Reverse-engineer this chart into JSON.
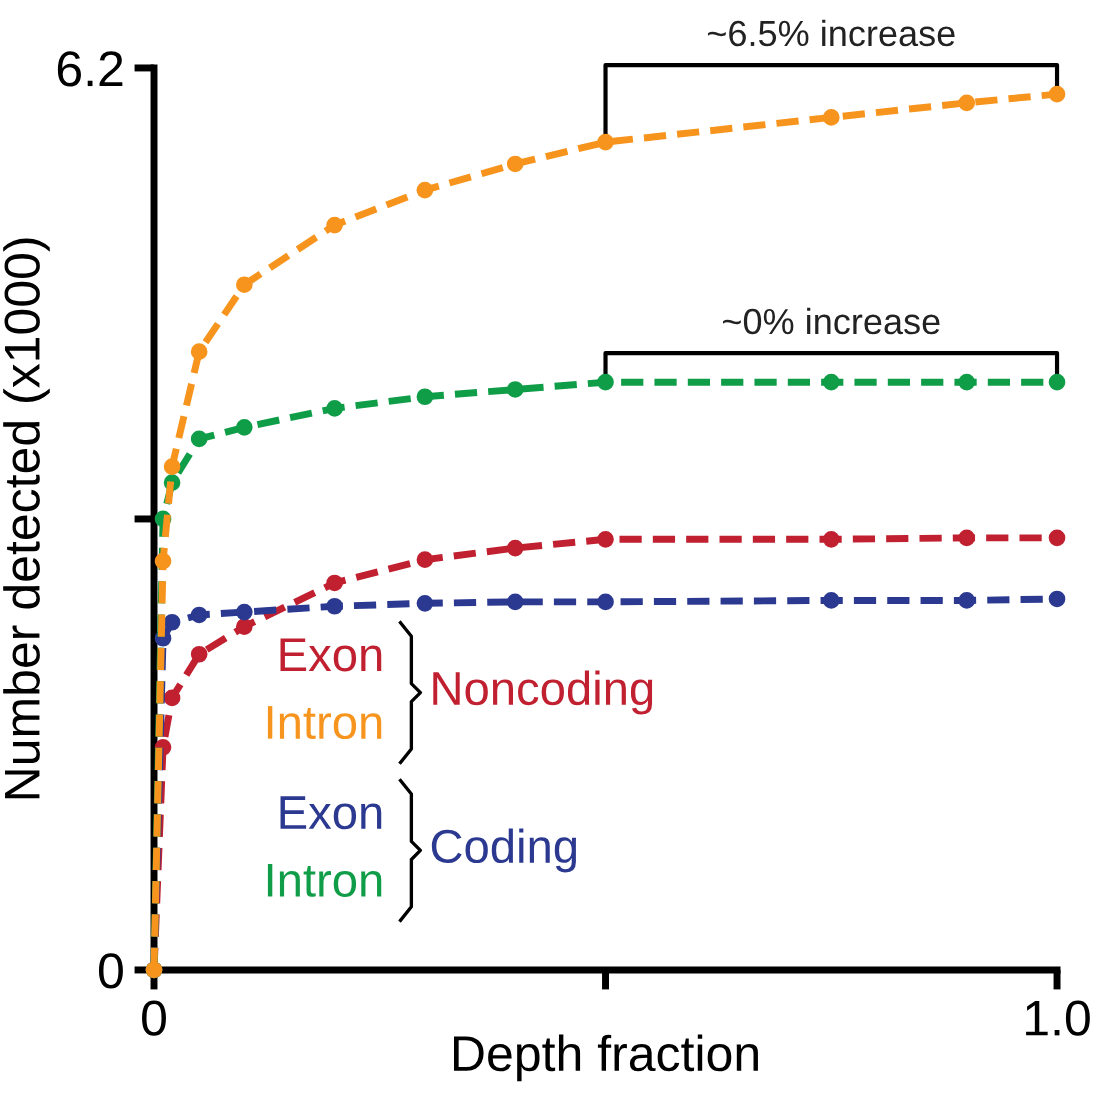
{
  "chart_data": {
    "type": "line",
    "xlabel": "Depth fraction",
    "ylabel": "Number detected (x1000)",
    "x": [
      0,
      0.01,
      0.02,
      0.05,
      0.1,
      0.2,
      0.3,
      0.4,
      0.5,
      0.75,
      0.9,
      1.0
    ],
    "series": [
      {
        "name": "Exon",
        "color": "#c0202f",
        "values": [
          0,
          1.53,
          1.87,
          2.17,
          2.36,
          2.66,
          2.82,
          2.9,
          2.96,
          2.96,
          2.97,
          2.97
        ]
      },
      {
        "name": "Intron",
        "color": "#f7941d",
        "values": [
          0,
          2.81,
          3.46,
          4.25,
          4.71,
          5.12,
          5.36,
          5.54,
          5.69,
          5.86,
          5.96,
          6.02
        ]
      },
      {
        "name": "Exon",
        "color": "#2b3990",
        "values": [
          0,
          2.28,
          2.39,
          2.44,
          2.46,
          2.5,
          2.52,
          2.53,
          2.53,
          2.54,
          2.54,
          2.55
        ]
      },
      {
        "name": "Intron",
        "color": "#0f9d48",
        "values": [
          0,
          3.1,
          3.35,
          3.65,
          3.73,
          3.86,
          3.94,
          3.99,
          4.04,
          4.04,
          4.04,
          4.04
        ]
      }
    ],
    "annotations": [
      "~6.5% increase",
      "~0% increase",
      "Noncoding",
      "Coding"
    ],
    "xlim": [
      0,
      1.0
    ],
    "ylim": [
      0,
      6.2
    ],
    "xticks": [
      0,
      {
        "value": 0.5,
        "label": null
      },
      {
        "value": 1.0,
        "label": "1.0"
      }
    ],
    "yticks": [
      0,
      {
        "value": 3.1,
        "label": null
      },
      6.2
    ],
    "marker": "circle",
    "line_style": "dashed",
    "grid": false,
    "legend": "bottom left"
  }
}
